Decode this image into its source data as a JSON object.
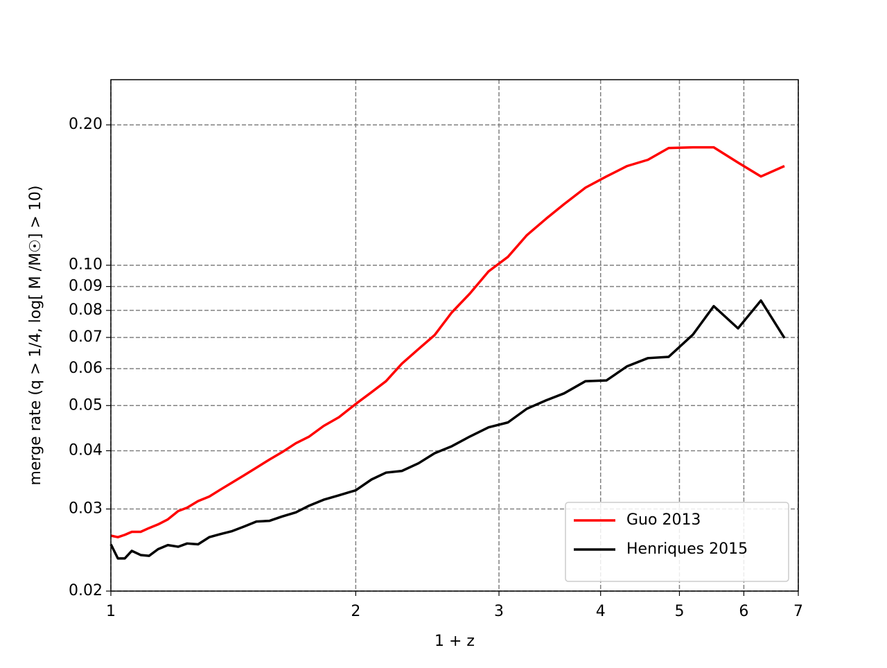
{
  "chart_data": {
    "type": "line",
    "xlabel": "1 + z",
    "ylabel": "merge rate (q > 1/4, log[ M /M☉] > 10)",
    "xscale": "log",
    "yscale": "log",
    "xlim": [
      1,
      7
    ],
    "ylim": [
      0.02,
      0.25
    ],
    "xticks": [
      1,
      2,
      3,
      4,
      5,
      6,
      7
    ],
    "yticks": [
      0.02,
      0.03,
      0.04,
      0.05,
      0.06,
      0.07,
      0.08,
      0.09,
      {
        "value": 0.1,
        "label": "0.10"
      },
      {
        "value": 0.2,
        "label": "0.20"
      }
    ],
    "grid": true,
    "legend": "lower right",
    "x": [
      1.0,
      1.02,
      1.04,
      1.061,
      1.088,
      1.114,
      1.143,
      1.175,
      1.21,
      1.241,
      1.28,
      1.321,
      1.363,
      1.41,
      1.457,
      1.51,
      1.567,
      1.623,
      1.688,
      1.753,
      1.826,
      1.907,
      2.0,
      2.091,
      2.179,
      2.279,
      2.389,
      2.5,
      2.625,
      2.762,
      2.913,
      3.077,
      3.245,
      3.428,
      3.607,
      3.833,
      4.066,
      4.312,
      4.573,
      4.85,
      5.195,
      5.51,
      5.902,
      6.297,
      6.731
    ],
    "series": [
      {
        "name": "Guo 2013",
        "color": "#ff0000",
        "values": [
          0.0263,
          0.0261,
          0.0264,
          0.0268,
          0.0268,
          0.0273,
          0.0278,
          0.0285,
          0.0297,
          0.0302,
          0.0312,
          0.0319,
          0.033,
          0.0342,
          0.0354,
          0.0368,
          0.0383,
          0.0397,
          0.0415,
          0.0429,
          0.0452,
          0.0472,
          0.0504,
          0.0534,
          0.0564,
          0.0615,
          0.0661,
          0.0708,
          0.0792,
          0.0869,
          0.097,
          0.1042,
          0.1159,
          0.1258,
          0.1352,
          0.1467,
          0.155,
          0.1632,
          0.1683,
          0.1784,
          0.179,
          0.179,
          0.166,
          0.155,
          0.1632
        ]
      },
      {
        "name": "Henriques 2015",
        "color": "#000000",
        "values": [
          0.0252,
          0.0235,
          0.0235,
          0.0244,
          0.0239,
          0.0238,
          0.0246,
          0.0251,
          0.0249,
          0.0253,
          0.0252,
          0.0261,
          0.0265,
          0.0269,
          0.0275,
          0.0282,
          0.0283,
          0.0289,
          0.0295,
          0.0305,
          0.0314,
          0.0321,
          0.0329,
          0.0347,
          0.0359,
          0.0362,
          0.0376,
          0.0395,
          0.0409,
          0.0429,
          0.0449,
          0.046,
          0.0492,
          0.0513,
          0.0531,
          0.0564,
          0.0566,
          0.0607,
          0.0632,
          0.0636,
          0.071,
          0.0817,
          0.0732,
          0.084,
          0.0698
        ]
      }
    ]
  }
}
